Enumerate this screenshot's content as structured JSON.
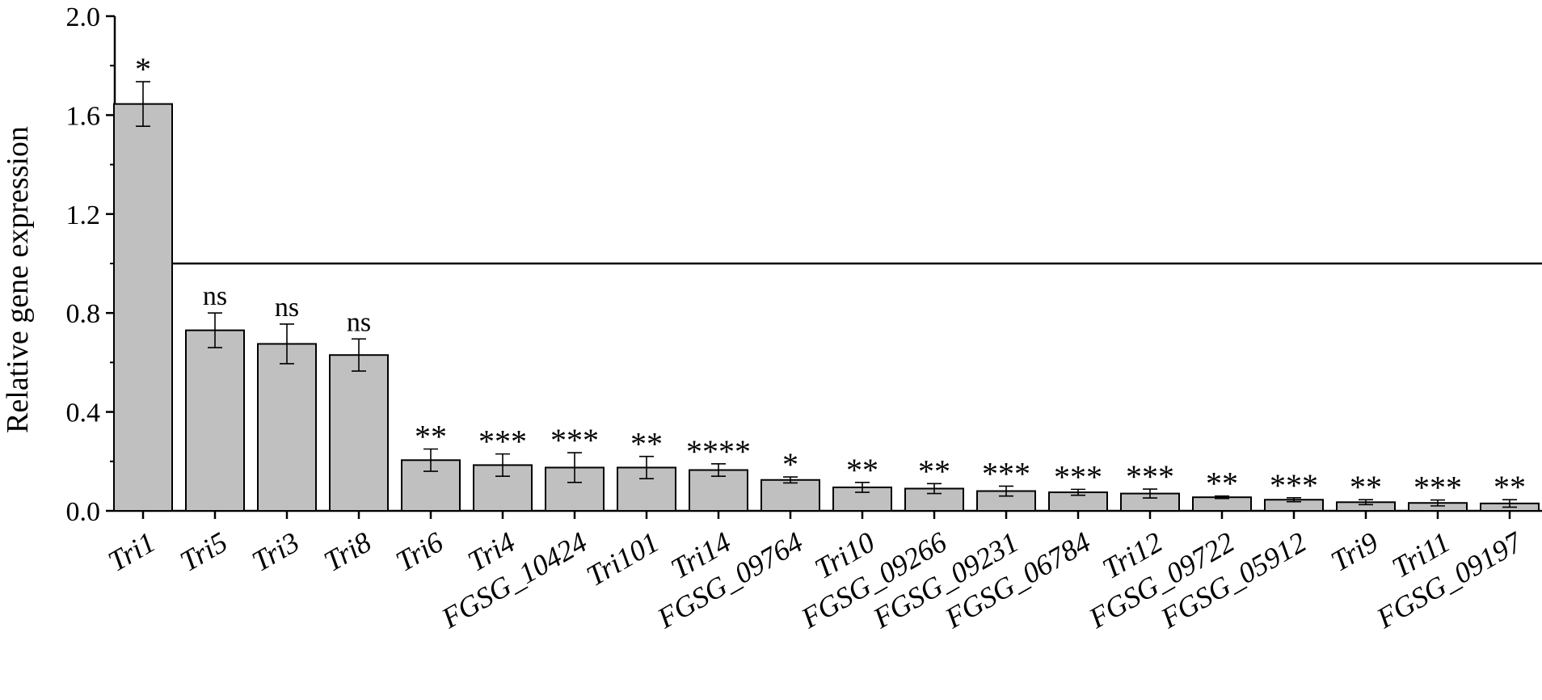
{
  "chart_data": {
    "type": "bar",
    "title": "",
    "xlabel": "",
    "ylabel": "Relative gene expression",
    "ylim": [
      0,
      2.0
    ],
    "yticks": [
      "0.0",
      "0.4",
      "0.8",
      "1.2",
      "1.6",
      "2.0"
    ],
    "reference_line": 1.0,
    "bar_color": "#c0c0c0",
    "categories": [
      "Tri1",
      "Tri5",
      "Tri3",
      "Tri8",
      "Tri6",
      "Tri4",
      "FGSG_10424",
      "Tri101",
      "Tri14",
      "FGSG_09764",
      "Tri10",
      "FGSG_09266",
      "FGSG_09231",
      "FGSG_06784",
      "Tri12",
      "FGSG_09722",
      "FGSG_05912",
      "Tri9",
      "Tri11",
      "FGSG_09197"
    ],
    "values": [
      1.645,
      0.73,
      0.675,
      0.63,
      0.205,
      0.185,
      0.175,
      0.175,
      0.165,
      0.125,
      0.095,
      0.09,
      0.08,
      0.075,
      0.07,
      0.055,
      0.045,
      0.035,
      0.032,
      0.03
    ],
    "errors": [
      0.09,
      0.07,
      0.08,
      0.065,
      0.045,
      0.045,
      0.06,
      0.045,
      0.025,
      0.012,
      0.02,
      0.02,
      0.02,
      0.012,
      0.018,
      0.005,
      0.008,
      0.01,
      0.012,
      0.015
    ],
    "significance": [
      "*",
      "ns",
      "ns",
      "ns",
      "**",
      "***",
      "***",
      "**",
      "****",
      "*",
      "**",
      "**",
      "***",
      "***",
      "***",
      "**",
      "***",
      "**",
      "***",
      "**"
    ]
  }
}
